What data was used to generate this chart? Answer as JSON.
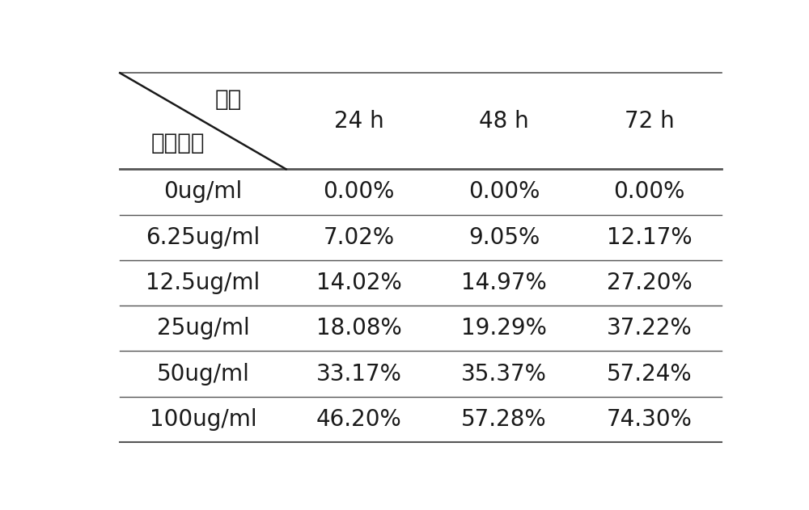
{
  "header_row_label_top": "时间",
  "header_row_label_bottom": "样品浓度",
  "col_headers": [
    "24 h",
    "48 h",
    "72 h"
  ],
  "row_labels": [
    "0ug/ml",
    "6.25ug/ml",
    "12.5ug/ml",
    "25ug/ml",
    "50ug/ml",
    "100ug/ml"
  ],
  "table_data": [
    [
      "0.00%",
      "0.00%",
      "0.00%"
    ],
    [
      "7.02%",
      "9.05%",
      "12.17%"
    ],
    [
      "14.02%",
      "14.97%",
      "27.20%"
    ],
    [
      "18.08%",
      "19.29%",
      "37.22%"
    ],
    [
      "33.17%",
      "35.37%",
      "57.24%"
    ],
    [
      "46.20%",
      "57.28%",
      "74.30%"
    ]
  ],
  "bg_color": "#ffffff",
  "text_color": "#1a1a1a",
  "line_color": "#555555",
  "font_size": 20,
  "header_font_size": 20,
  "fig_width": 10.0,
  "fig_height": 6.31
}
